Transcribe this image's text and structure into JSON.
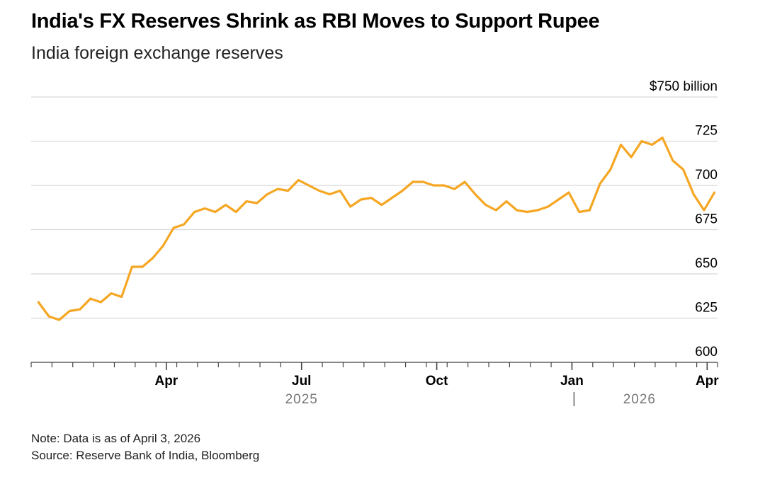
{
  "title": "India's FX Reserves Shrink as RBI Moves to Support Rupee",
  "subtitle": "India foreign exchange reserves",
  "note": "Note: Data is as of April 3, 2026",
  "source": "Source: Reserve Bank of India, Bloomberg",
  "colors": {
    "line": "#F5A623",
    "grid": "#d8d8d8",
    "axis": "#444444",
    "year": "#777777"
  },
  "chart_data": {
    "type": "line",
    "title": "India's FX Reserves Shrink as RBI Moves to Support Rupee",
    "subtitle": "India foreign exchange reserves",
    "unit_label": "$750 billion",
    "ylim": [
      600,
      750
    ],
    "yticks": [
      600,
      625,
      650,
      675,
      700,
      725,
      750
    ],
    "ytick_labels": [
      "600",
      "625",
      "650",
      "675",
      "700",
      "725",
      "$750 billion"
    ],
    "grid": true,
    "xlim": [
      0,
      66
    ],
    "xtick_positions": [
      0,
      2,
      4,
      6,
      8,
      10,
      12,
      14,
      16,
      18,
      20,
      22,
      24,
      26,
      28,
      30,
      32,
      34,
      36,
      38,
      40,
      42,
      44,
      46,
      48,
      50,
      52,
      54,
      56,
      58,
      60,
      62,
      64,
      66
    ],
    "major_ticks": [
      {
        "x": 13,
        "label": "Apr"
      },
      {
        "x": 26,
        "label": "Jul"
      },
      {
        "x": 39,
        "label": "Oct"
      },
      {
        "x": 52,
        "label": "Jan"
      },
      {
        "x": 65,
        "label": "Apr"
      }
    ],
    "year_labels": [
      {
        "x": 26,
        "label": "2025"
      },
      {
        "x": 58.5,
        "label": "2026"
      }
    ],
    "year_separator_x": 52.2,
    "series": [
      {
        "name": "India foreign exchange reserves",
        "x": [
          0.7,
          1.7,
          2.7,
          3.7,
          4.7,
          5.7,
          6.7,
          7.7,
          8.7,
          9.7,
          10.7,
          11.7,
          12.7,
          13.7,
          14.7,
          15.7,
          16.7,
          17.7,
          18.7,
          19.7,
          20.7,
          21.7,
          22.7,
          23.7,
          24.7,
          25.7,
          26.7,
          27.7,
          28.7,
          29.7,
          30.7,
          31.7,
          32.7,
          33.7,
          34.7,
          35.7,
          36.7,
          37.7,
          38.7,
          39.7,
          40.7,
          41.7,
          42.7,
          43.7,
          44.7,
          45.7,
          46.7,
          47.7,
          48.7,
          49.7,
          50.7,
          51.7,
          52.7,
          53.7,
          54.7,
          55.7,
          56.7,
          57.7,
          58.7,
          59.7,
          60.7,
          61.7,
          62.7,
          63.7,
          64.7,
          65.7
        ],
        "values": [
          634,
          626,
          624,
          629,
          630,
          636,
          634,
          639,
          637,
          654,
          654,
          659,
          666,
          676,
          678,
          685,
          687,
          685,
          689,
          685,
          691,
          690,
          695,
          698,
          697,
          703,
          700,
          697,
          695,
          697,
          688,
          692,
          693,
          689,
          693,
          697,
          702,
          702,
          700,
          700,
          698,
          702,
          695,
          689,
          686,
          691,
          686,
          685,
          686,
          688,
          692,
          696,
          685,
          686,
          701,
          709,
          723,
          716,
          725,
          723,
          727,
          714,
          709,
          695,
          686,
          696
        ]
      }
    ]
  }
}
